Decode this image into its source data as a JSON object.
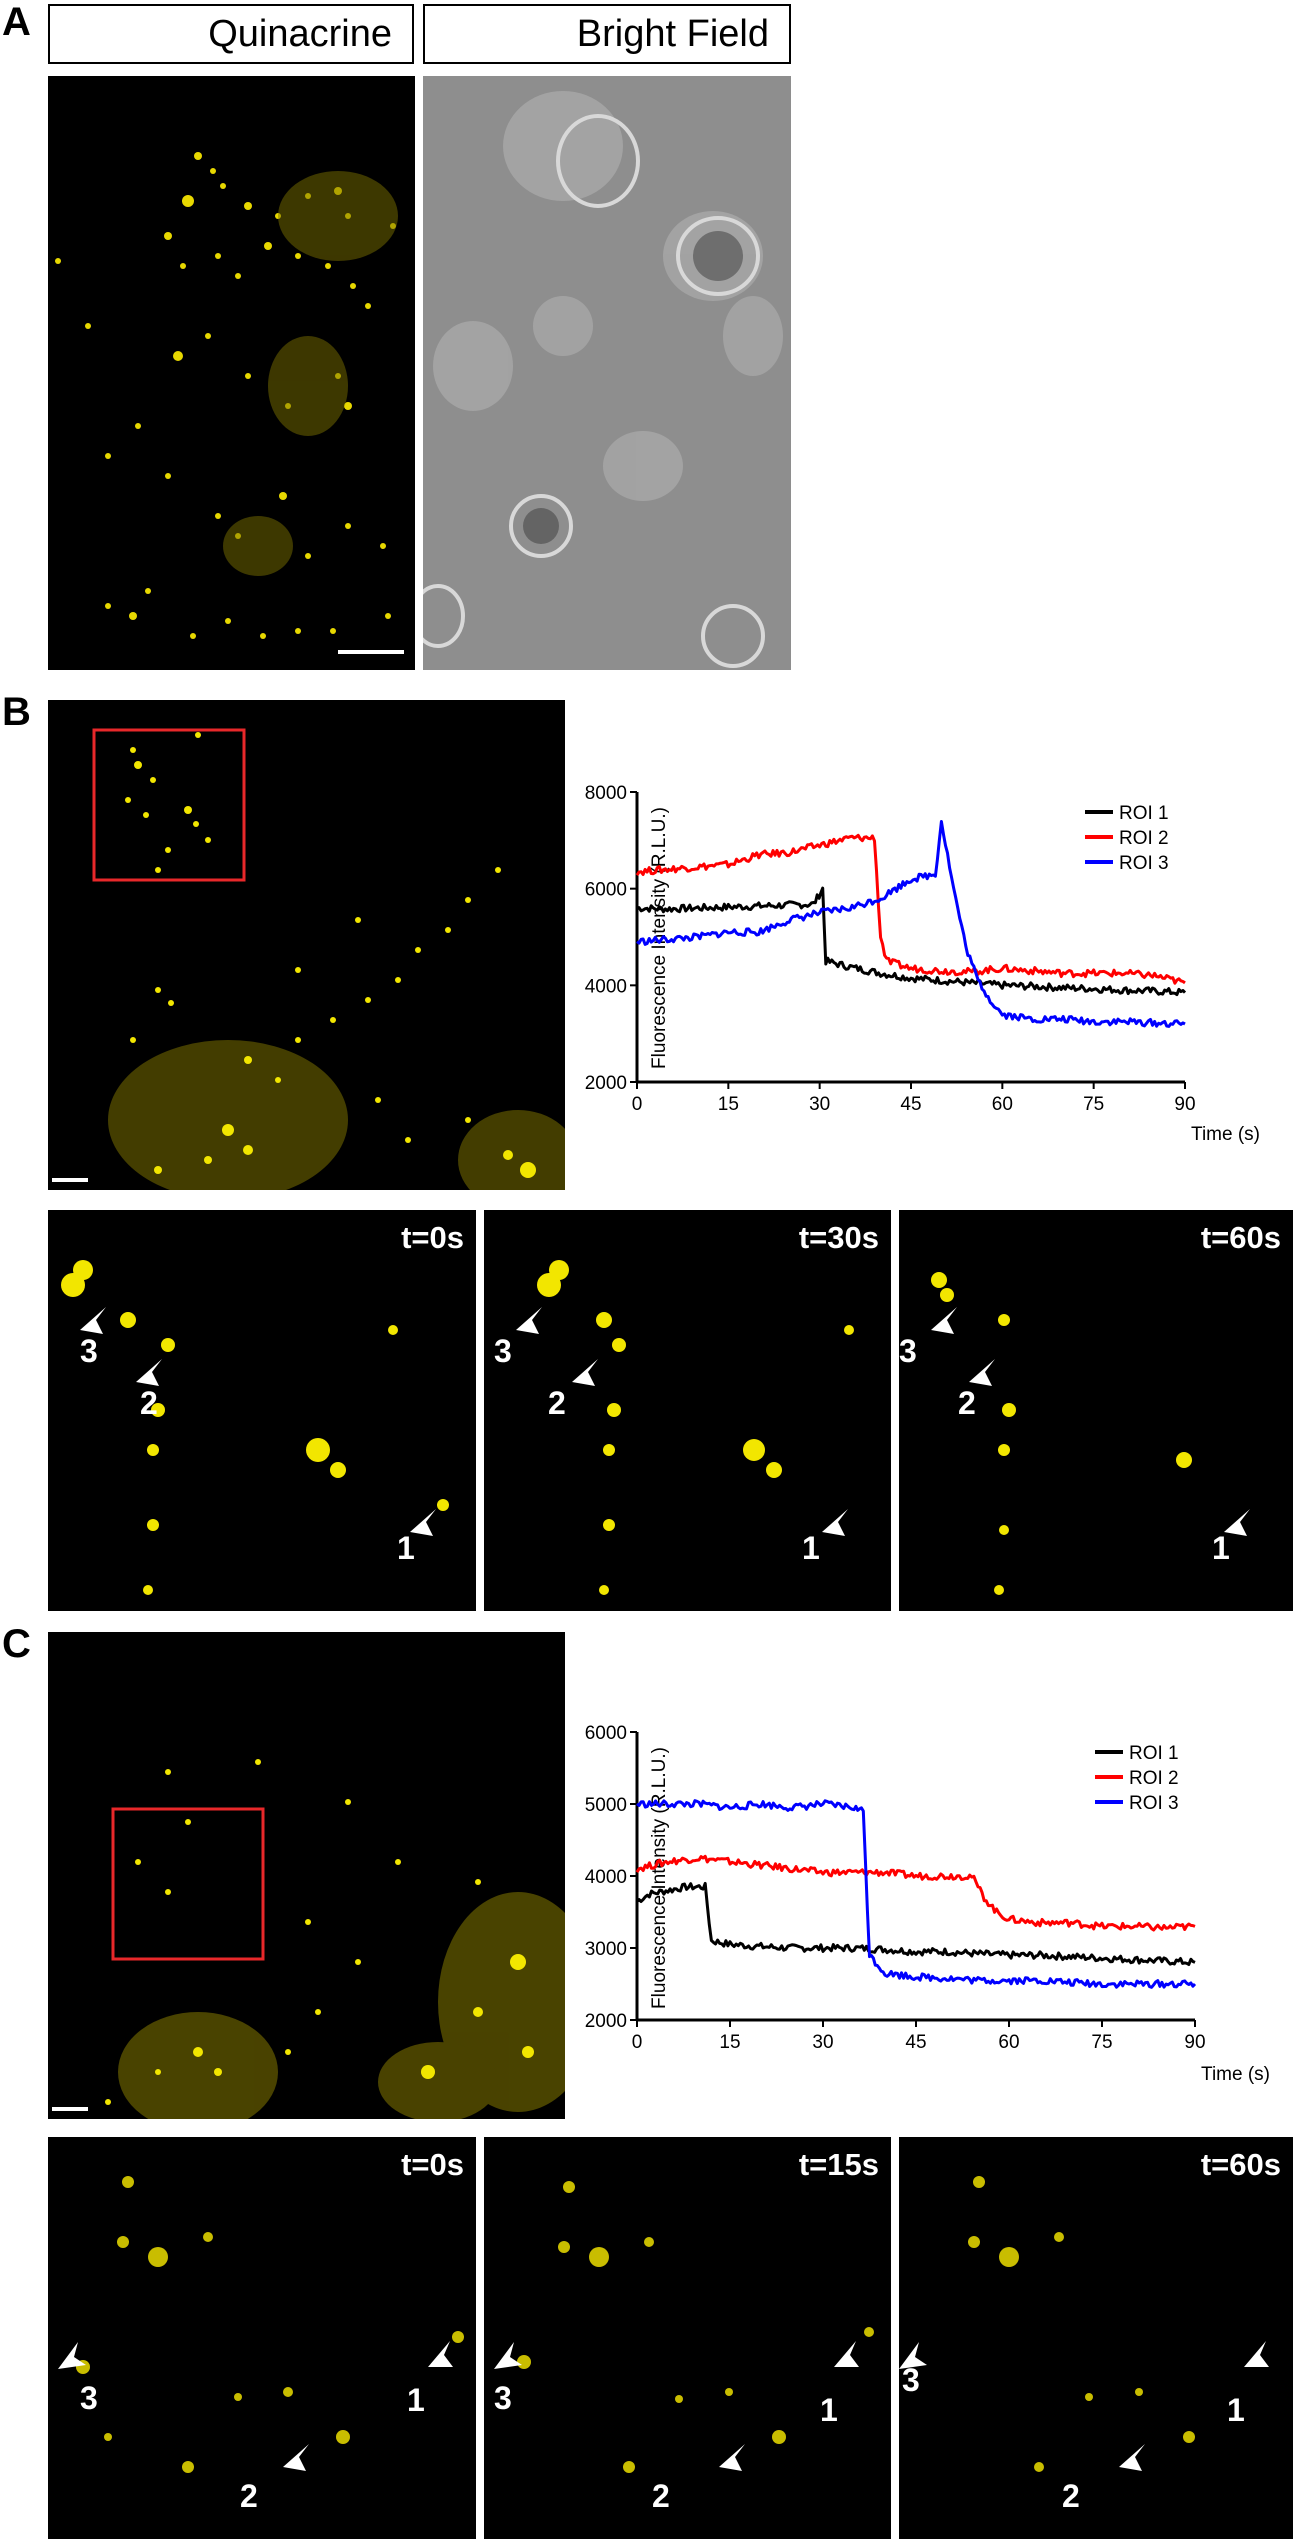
{
  "panels": {
    "A": {
      "label": "A",
      "headers": [
        "Quinacrine",
        "Bright Field"
      ]
    },
    "B": {
      "label": "B",
      "timepoints": [
        "t=0s",
        "t=30s",
        "t=60s"
      ],
      "roi_labels": [
        "1",
        "2",
        "3"
      ]
    },
    "C": {
      "label": "C",
      "timepoints": [
        "t=0s",
        "t=15s",
        "t=60s"
      ],
      "roi_labels": [
        "1",
        "2",
        "3"
      ]
    }
  },
  "colors": {
    "fluorescence": "#f2e600",
    "roi_box": "#e8282a",
    "roi1": "#000000",
    "roi2": "#ff0000",
    "roi3": "#0000ff"
  },
  "chart_data": [
    {
      "type": "line",
      "panel": "B",
      "xlabel": "Time (s)",
      "ylabel": "Fluorescence Intensity (R.L.U.)",
      "xlim": [
        0,
        90
      ],
      "ylim": [
        2000,
        8000
      ],
      "xticks": [
        0,
        15,
        30,
        45,
        60,
        75,
        90
      ],
      "yticks": [
        2000,
        4000,
        6000,
        8000
      ],
      "legend": "top-right",
      "series": [
        {
          "name": "ROI 1",
          "color": "#000000",
          "x": [
            0,
            5,
            10,
            15,
            20,
            25,
            29,
            30.5,
            31,
            35,
            40,
            45,
            50,
            55,
            60,
            65,
            70,
            75,
            80,
            85,
            90
          ],
          "y": [
            5600,
            5580,
            5600,
            5620,
            5640,
            5660,
            5680,
            6000,
            4500,
            4380,
            4250,
            4150,
            4100,
            4050,
            4000,
            3980,
            3950,
            3930,
            3900,
            3880,
            3850
          ]
        },
        {
          "name": "ROI 2",
          "color": "#ff0000",
          "x": [
            0,
            5,
            10,
            15,
            20,
            25,
            30,
            35,
            39,
            40,
            41,
            45,
            50,
            55,
            60,
            65,
            70,
            75,
            80,
            85,
            90
          ],
          "y": [
            6350,
            6400,
            6450,
            6500,
            6700,
            6750,
            6900,
            7050,
            7050,
            5000,
            4500,
            4350,
            4300,
            4280,
            4350,
            4300,
            4250,
            4250,
            4250,
            4200,
            4050
          ]
        },
        {
          "name": "ROI 3",
          "color": "#0000ff",
          "x": [
            0,
            5,
            10,
            15,
            20,
            25,
            30,
            35,
            40,
            45,
            49,
            50,
            52,
            54,
            56,
            58,
            60,
            65,
            70,
            75,
            80,
            85,
            90
          ],
          "y": [
            4900,
            4950,
            5000,
            5100,
            5100,
            5350,
            5500,
            5600,
            5800,
            6200,
            6300,
            7400,
            6000,
            4800,
            4100,
            3700,
            3400,
            3300,
            3300,
            3250,
            3250,
            3220,
            3200
          ]
        }
      ]
    },
    {
      "type": "line",
      "panel": "C",
      "xlabel": "Time (s)",
      "ylabel": "Fluorescence Intensity (R.L.U.)",
      "xlim": [
        0,
        90
      ],
      "ylim": [
        2000,
        6000
      ],
      "xticks": [
        0,
        15,
        30,
        45,
        60,
        75,
        90
      ],
      "yticks": [
        2000,
        3000,
        4000,
        5000,
        6000
      ],
      "legend": "top-right",
      "series": [
        {
          "name": "ROI 1",
          "color": "#000000",
          "x": [
            0,
            2,
            5,
            8,
            11,
            12,
            15,
            20,
            25,
            30,
            35,
            40,
            45,
            50,
            55,
            60,
            65,
            70,
            75,
            80,
            85,
            90
          ],
          "y": [
            3650,
            3750,
            3800,
            3850,
            3850,
            3100,
            3050,
            3020,
            3000,
            3000,
            3000,
            2980,
            2950,
            2950,
            2920,
            2900,
            2900,
            2880,
            2860,
            2840,
            2820,
            2800
          ]
        },
        {
          "name": "ROI 2",
          "color": "#ff0000",
          "x": [
            0,
            5,
            10,
            15,
            20,
            25,
            30,
            35,
            40,
            45,
            50,
            54,
            56,
            58,
            60,
            65,
            70,
            75,
            80,
            85,
            90
          ],
          "y": [
            4100,
            4200,
            4250,
            4200,
            4150,
            4100,
            4050,
            4050,
            4050,
            4000,
            4000,
            4000,
            3700,
            3500,
            3400,
            3350,
            3350,
            3300,
            3300,
            3280,
            3300
          ]
        },
        {
          "name": "ROI 3",
          "color": "#0000ff",
          "x": [
            0,
            5,
            10,
            15,
            20,
            25,
            30,
            35,
            36.5,
            37.5,
            40,
            45,
            50,
            55,
            60,
            65,
            70,
            75,
            80,
            85,
            90
          ],
          "y": [
            5000,
            5000,
            5000,
            4950,
            5000,
            4950,
            5000,
            4950,
            4900,
            2900,
            2650,
            2600,
            2580,
            2550,
            2550,
            2550,
            2520,
            2500,
            2500,
            2500,
            2500
          ]
        }
      ]
    }
  ]
}
